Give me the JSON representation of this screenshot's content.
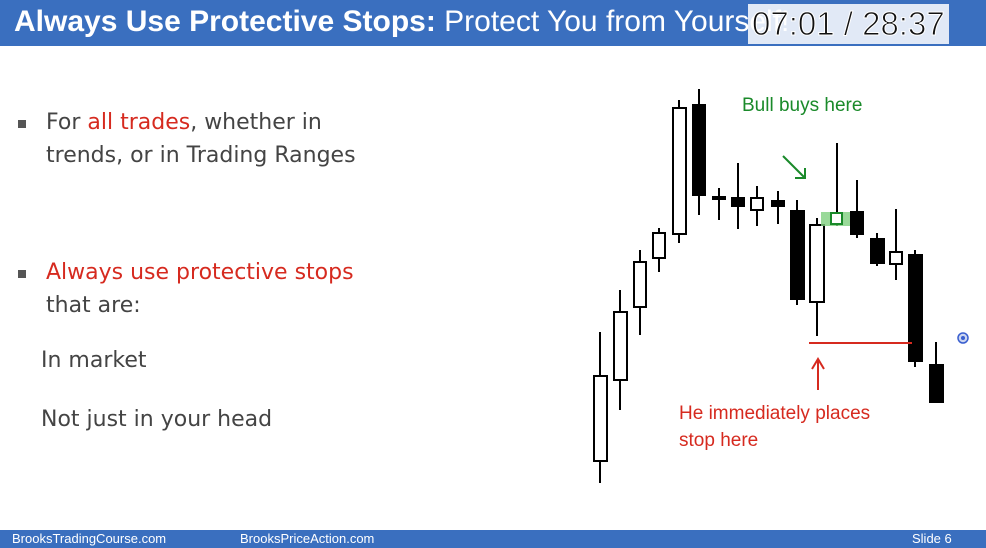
{
  "title": {
    "bold": "Always Use Protective Stops:",
    "rest": " Protect You from Yourself!"
  },
  "player": {
    "timestamp": "07:01 / 28:37"
  },
  "bullets": [
    {
      "pre": "For ",
      "highlight": "all trades",
      "post": ", whether in",
      "line2": "trends, or in Trading Ranges"
    },
    {
      "highlight": "Always use protective stops",
      "line2": "that are:"
    }
  ],
  "sub_items": [
    "In market",
    "Not just in your head"
  ],
  "annotations": {
    "bull": "Bull buys here",
    "stop_line1": "He immediately places",
    "stop_line2": "stop here"
  },
  "colors": {
    "bar": "#3a6fbf",
    "red": "#d62a1f",
    "green": "#1a8a2a",
    "entry": "#7fd07f"
  },
  "footer": {
    "left": "BrooksTradingCourse.com",
    "center": "BrooksPriceAction.com",
    "right": "Slide  6"
  }
}
